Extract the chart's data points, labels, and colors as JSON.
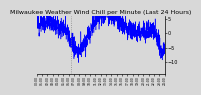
{
  "title": "Milwaukee Weather Wind Chill per Minute (Last 24 Hours)",
  "line_color": "#0000ff",
  "background_color": "#d8d8d8",
  "plot_bg_color": "#d8d8d8",
  "ylim": [
    -14,
    6
  ],
  "yticks": [
    5,
    0,
    -5,
    -10
  ],
  "n_points": 1440,
  "title_fontsize": 4.5,
  "tick_fontsize": 3.5,
  "vline_pos": 0.27,
  "seed": 12
}
